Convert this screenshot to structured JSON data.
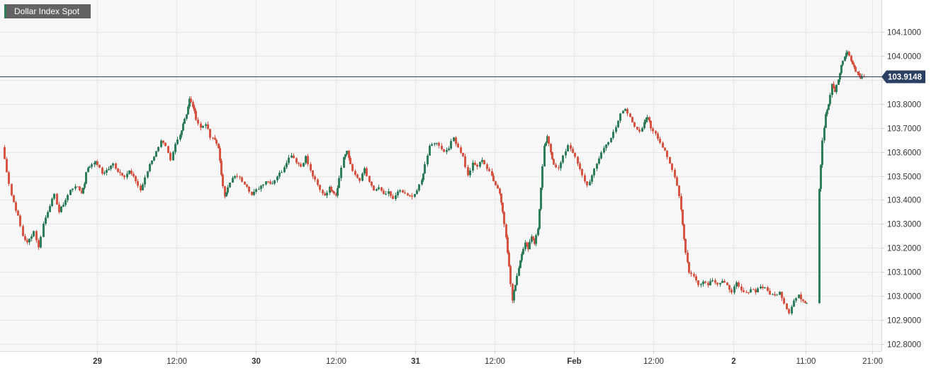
{
  "chart_data": {
    "type": "candlestick",
    "title": "Dollar Index Spot",
    "last_price": "103.9148",
    "ylim": [
      102.77,
      104.195
    ],
    "y_ticks": [
      "104.1000",
      "104.0000",
      "103.9000",
      "103.8000",
      "103.7000",
      "103.6000",
      "103.5000",
      "103.4000",
      "103.3000",
      "103.2000",
      "103.1000",
      "103.0000",
      "102.9000",
      "102.8000"
    ],
    "x_ticks": [
      {
        "label": "29",
        "bold": true,
        "pos": 0.0
      },
      {
        "label": "12:00",
        "bold": false,
        "pos": 0.5
      },
      {
        "label": "30",
        "bold": true,
        "pos": 1.0
      },
      {
        "label": "12:00",
        "bold": false,
        "pos": 1.5
      },
      {
        "label": "31",
        "bold": true,
        "pos": 2.0
      },
      {
        "label": "12:00",
        "bold": false,
        "pos": 2.5
      },
      {
        "label": "Feb",
        "bold": true,
        "pos": 3.0
      },
      {
        "label": "12:00",
        "bold": false,
        "pos": 3.5
      },
      {
        "label": "2",
        "bold": true,
        "pos": 4.0
      },
      {
        "label": "11:00",
        "bold": false,
        "pos": 4.458
      },
      {
        "label": "21:00",
        "bold": false,
        "pos": 4.875
      }
    ],
    "x_start": -0.6,
    "path": [
      [
        -0.6,
        103.62
      ],
      [
        -0.57,
        103.52
      ],
      [
        -0.54,
        103.42
      ],
      [
        -0.5,
        103.33
      ],
      [
        -0.47,
        103.25
      ],
      [
        -0.44,
        103.22
      ],
      [
        -0.4,
        103.27
      ],
      [
        -0.37,
        103.2
      ],
      [
        -0.34,
        103.3
      ],
      [
        -0.3,
        103.38
      ],
      [
        -0.27,
        103.42
      ],
      [
        -0.24,
        103.35
      ],
      [
        -0.2,
        103.4
      ],
      [
        -0.17,
        103.44
      ],
      [
        -0.14,
        103.46
      ],
      [
        -0.1,
        103.43
      ],
      [
        -0.08,
        103.47
      ],
      [
        -0.07,
        103.52
      ],
      [
        -0.05,
        103.54
      ],
      [
        -0.02,
        103.56
      ],
      [
        0.0,
        103.55
      ],
      [
        0.03,
        103.51
      ],
      [
        0.07,
        103.53
      ],
      [
        0.1,
        103.55
      ],
      [
        0.13,
        103.52
      ],
      [
        0.17,
        103.5
      ],
      [
        0.2,
        103.52
      ],
      [
        0.24,
        103.48
      ],
      [
        0.27,
        103.44
      ],
      [
        0.3,
        103.49
      ],
      [
        0.33,
        103.55
      ],
      [
        0.37,
        103.6
      ],
      [
        0.4,
        103.65
      ],
      [
        0.43,
        103.62
      ],
      [
        0.46,
        103.56
      ],
      [
        0.49,
        103.63
      ],
      [
        0.52,
        103.67
      ],
      [
        0.54,
        103.72
      ],
      [
        0.56,
        103.76
      ],
      [
        0.58,
        103.82
      ],
      [
        0.6,
        103.79
      ],
      [
        0.62,
        103.74
      ],
      [
        0.65,
        103.7
      ],
      [
        0.68,
        103.72
      ],
      [
        0.71,
        103.66
      ],
      [
        0.74,
        103.65
      ],
      [
        0.76,
        103.62
      ],
      [
        0.78,
        103.5
      ],
      [
        0.8,
        103.42
      ],
      [
        0.82,
        103.45
      ],
      [
        0.85,
        103.49
      ],
      [
        0.88,
        103.5
      ],
      [
        0.91,
        103.48
      ],
      [
        0.94,
        103.46
      ],
      [
        0.97,
        103.42
      ],
      [
        1.0,
        103.44
      ],
      [
        1.03,
        103.46
      ],
      [
        1.06,
        103.48
      ],
      [
        1.1,
        103.47
      ],
      [
        1.13,
        103.5
      ],
      [
        1.16,
        103.52
      ],
      [
        1.19,
        103.56
      ],
      [
        1.22,
        103.59
      ],
      [
        1.25,
        103.56
      ],
      [
        1.28,
        103.54
      ],
      [
        1.31,
        103.58
      ],
      [
        1.34,
        103.52
      ],
      [
        1.37,
        103.48
      ],
      [
        1.4,
        103.44
      ],
      [
        1.43,
        103.42
      ],
      [
        1.46,
        103.45
      ],
      [
        1.48,
        103.44
      ],
      [
        1.5,
        103.42
      ],
      [
        1.52,
        103.49
      ],
      [
        1.55,
        103.58
      ],
      [
        1.57,
        103.6
      ],
      [
        1.59,
        103.55
      ],
      [
        1.62,
        103.5
      ],
      [
        1.65,
        103.48
      ],
      [
        1.68,
        103.53
      ],
      [
        1.71,
        103.47
      ],
      [
        1.74,
        103.44
      ],
      [
        1.77,
        103.45
      ],
      [
        1.8,
        103.42
      ],
      [
        1.83,
        103.43
      ],
      [
        1.86,
        103.4
      ],
      [
        1.89,
        103.44
      ],
      [
        1.92,
        103.43
      ],
      [
        1.95,
        103.42
      ],
      [
        1.98,
        103.41
      ],
      [
        2.01,
        103.44
      ],
      [
        2.04,
        103.48
      ],
      [
        2.06,
        103.55
      ],
      [
        2.09,
        103.62
      ],
      [
        2.12,
        103.64
      ],
      [
        2.15,
        103.63
      ],
      [
        2.18,
        103.6
      ],
      [
        2.21,
        103.62
      ],
      [
        2.24,
        103.66
      ],
      [
        2.27,
        103.62
      ],
      [
        2.3,
        103.58
      ],
      [
        2.33,
        103.5
      ],
      [
        2.36,
        103.55
      ],
      [
        2.39,
        103.54
      ],
      [
        2.42,
        103.57
      ],
      [
        2.45,
        103.53
      ],
      [
        2.48,
        103.5
      ],
      [
        2.53,
        103.43
      ],
      [
        2.55,
        103.35
      ],
      [
        2.57,
        103.25
      ],
      [
        2.59,
        103.12
      ],
      [
        2.61,
        102.98
      ],
      [
        2.63,
        103.05
      ],
      [
        2.65,
        103.12
      ],
      [
        2.67,
        103.18
      ],
      [
        2.69,
        103.22
      ],
      [
        2.71,
        103.2
      ],
      [
        2.73,
        103.25
      ],
      [
        2.75,
        103.22
      ],
      [
        2.77,
        103.28
      ],
      [
        2.79,
        103.45
      ],
      [
        2.81,
        103.62
      ],
      [
        2.83,
        103.66
      ],
      [
        2.85,
        103.6
      ],
      [
        2.87,
        103.55
      ],
      [
        2.9,
        103.53
      ],
      [
        2.93,
        103.58
      ],
      [
        2.96,
        103.63
      ],
      [
        2.99,
        103.6
      ],
      [
        3.02,
        103.55
      ],
      [
        3.05,
        103.5
      ],
      [
        3.08,
        103.46
      ],
      [
        3.11,
        103.5
      ],
      [
        3.14,
        103.55
      ],
      [
        3.17,
        103.6
      ],
      [
        3.2,
        103.63
      ],
      [
        3.23,
        103.66
      ],
      [
        3.26,
        103.7
      ],
      [
        3.29,
        103.76
      ],
      [
        3.32,
        103.78
      ],
      [
        3.35,
        103.75
      ],
      [
        3.38,
        103.7
      ],
      [
        3.41,
        103.68
      ],
      [
        3.44,
        103.72
      ],
      [
        3.46,
        103.75
      ],
      [
        3.48,
        103.7
      ],
      [
        3.51,
        103.68
      ],
      [
        3.54,
        103.64
      ],
      [
        3.57,
        103.6
      ],
      [
        3.6,
        103.55
      ],
      [
        3.63,
        103.5
      ],
      [
        3.66,
        103.42
      ],
      [
        3.68,
        103.3
      ],
      [
        3.7,
        103.18
      ],
      [
        3.72,
        103.1
      ],
      [
        3.75,
        103.08
      ],
      [
        3.78,
        103.05
      ],
      [
        3.81,
        103.06
      ],
      [
        3.84,
        103.05
      ],
      [
        3.87,
        103.07
      ],
      [
        3.9,
        103.05
      ],
      [
        3.93,
        103.06
      ],
      [
        3.96,
        103.04
      ],
      [
        3.99,
        103.02
      ],
      [
        4.02,
        103.05
      ],
      [
        4.05,
        103.02
      ],
      [
        4.08,
        103.01
      ],
      [
        4.11,
        103.03
      ],
      [
        4.14,
        103.02
      ],
      [
        4.17,
        103.04
      ],
      [
        4.2,
        103.03
      ],
      [
        4.23,
        103.01
      ],
      [
        4.26,
        103.0
      ],
      [
        4.29,
        103.02
      ],
      [
        4.32,
        102.97
      ],
      [
        4.35,
        102.93
      ],
      [
        4.38,
        102.98
      ],
      [
        4.41,
        103.0
      ],
      [
        4.44,
        102.98
      ],
      [
        4.46,
        102.97
      ],
      [
        4.54,
        103.45
      ],
      [
        4.56,
        103.65
      ],
      [
        4.58,
        103.76
      ],
      [
        4.6,
        103.8
      ],
      [
        4.62,
        103.88
      ],
      [
        4.64,
        103.85
      ],
      [
        4.66,
        103.9
      ],
      [
        4.68,
        103.96
      ],
      [
        4.7,
        104.0
      ],
      [
        4.72,
        104.02
      ],
      [
        4.74,
        103.98
      ],
      [
        4.76,
        103.95
      ],
      [
        4.78,
        103.93
      ],
      [
        4.8,
        103.91
      ],
      [
        4.82,
        103.915
      ]
    ]
  }
}
